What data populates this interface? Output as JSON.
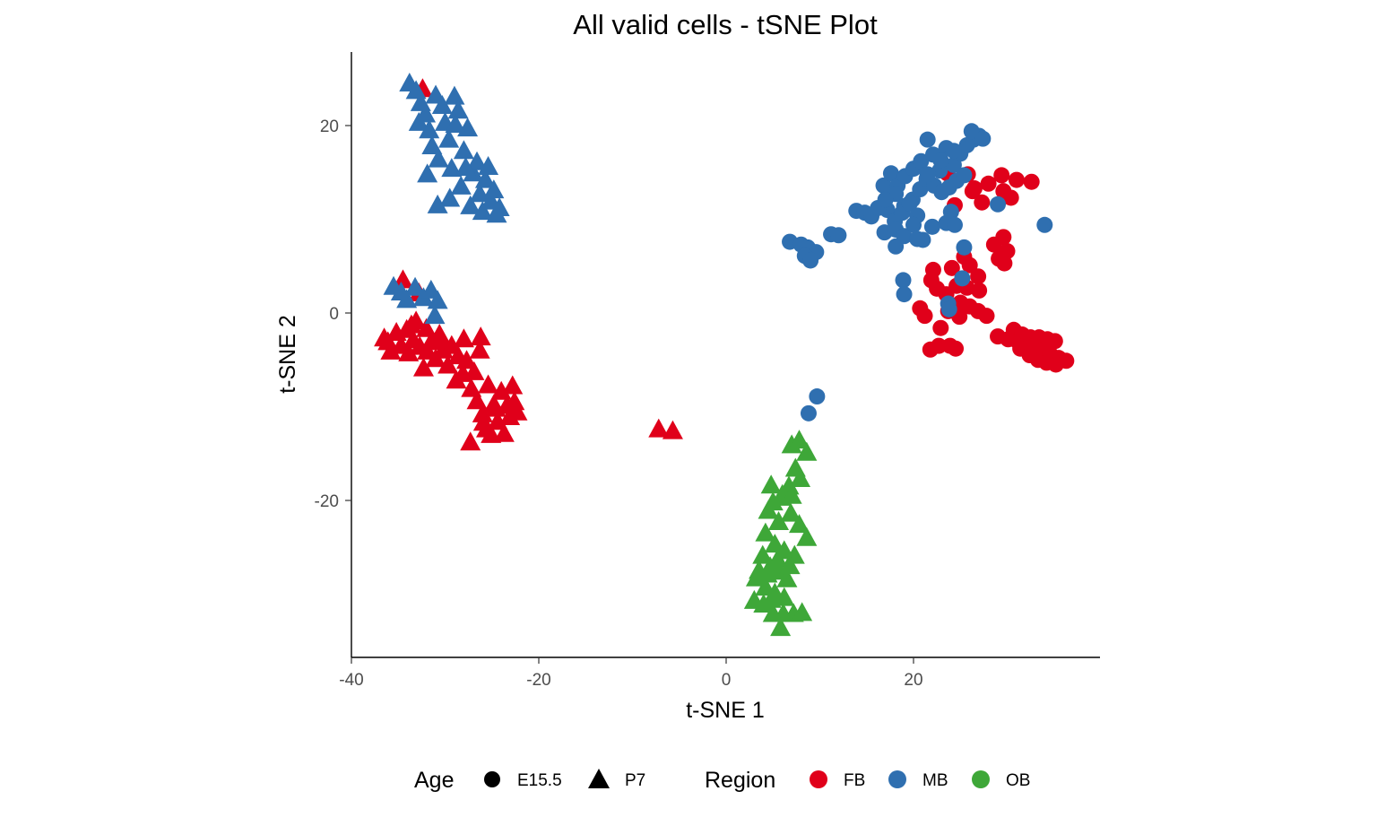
{
  "chart_data": {
    "type": "scatter",
    "title": "All valid cells - tSNE Plot",
    "xlabel": "t-SNE 1",
    "ylabel": "t-SNE 2",
    "xlim": [
      -40,
      40
    ],
    "ylim": [
      -37,
      28
    ],
    "xticks": [
      -40,
      -20,
      0,
      20
    ],
    "yticks": [
      -20,
      0,
      20
    ],
    "grid": false,
    "legend_position": "bottom",
    "colors": {
      "FB": "#e0001a",
      "MB": "#2f6fb0",
      "OB": "#3ea738"
    },
    "legends": [
      {
        "title": "Age",
        "items": [
          {
            "label": "E15.5",
            "shape": "circle"
          },
          {
            "label": "P7",
            "shape": "triangle"
          }
        ]
      },
      {
        "title": "Region",
        "items": [
          {
            "label": "FB",
            "color": "#e0001a"
          },
          {
            "label": "MB",
            "color": "#2f6fb0"
          },
          {
            "label": "OB",
            "color": "#3ea738"
          }
        ]
      }
    ],
    "series": [
      {
        "name": "FB",
        "age": "P7",
        "points": [
          [
            -36.5,
            -2.7
          ],
          [
            -35.8,
            -4.1
          ],
          [
            -35.2,
            -2.1
          ],
          [
            -34.7,
            -3.5
          ],
          [
            -34.1,
            -1.8
          ],
          [
            -33.9,
            -4.3
          ],
          [
            -33.4,
            -2.9
          ],
          [
            -33.1,
            -0.9
          ],
          [
            -32.7,
            -3.6
          ],
          [
            -32.3,
            -5.9
          ],
          [
            -32.0,
            -1.7
          ],
          [
            -31.5,
            -3.1
          ],
          [
            -31.0,
            -4.9
          ],
          [
            -30.6,
            -2.3
          ],
          [
            -30.2,
            -4.0
          ],
          [
            -29.7,
            -5.6
          ],
          [
            -29.3,
            -3.5
          ],
          [
            -28.8,
            -7.2
          ],
          [
            -28.6,
            -4.6
          ],
          [
            -28.0,
            -2.8
          ],
          [
            -27.7,
            -5.1
          ],
          [
            -27.2,
            -8.1
          ],
          [
            -26.9,
            -6.3
          ],
          [
            -26.6,
            -9.4
          ],
          [
            -26.3,
            -4.0
          ],
          [
            -26.0,
            -10.8
          ],
          [
            -25.6,
            -12.4
          ],
          [
            -25.4,
            -7.7
          ],
          [
            -25.1,
            -13.0
          ],
          [
            -24.8,
            -9.8
          ],
          [
            -24.4,
            -11.6
          ],
          [
            -24.0,
            -8.4
          ],
          [
            -23.7,
            -12.9
          ],
          [
            -23.4,
            -9.9
          ],
          [
            -23.1,
            -11.1
          ],
          [
            -22.8,
            -7.8
          ],
          [
            -22.6,
            -9.5
          ],
          [
            -22.3,
            -10.6
          ],
          [
            -26.2,
            -2.6
          ],
          [
            -34.5,
            3.5
          ],
          [
            -32.8,
            2.1
          ],
          [
            -27.3,
            -13.8
          ],
          [
            -25.9,
            -11.7
          ],
          [
            -24.6,
            -10.2
          ],
          [
            -33.6,
            -1.3
          ],
          [
            -31.9,
            -4.1
          ],
          [
            -30.3,
            -2.9
          ],
          [
            -36.1,
            -3.1
          ],
          [
            -28.1,
            -6.5
          ],
          [
            -7.2,
            -12.4
          ],
          [
            -5.7,
            -12.6
          ],
          [
            -32.4,
            23.9
          ]
        ]
      },
      {
        "name": "MB",
        "age": "P7",
        "points": [
          [
            -33.8,
            24.5
          ],
          [
            -33.1,
            23.7
          ],
          [
            -32.6,
            22.4
          ],
          [
            -32.1,
            21.2
          ],
          [
            -31.7,
            19.5
          ],
          [
            -31.4,
            17.8
          ],
          [
            -31.0,
            23.2
          ],
          [
            -30.7,
            16.4
          ],
          [
            -30.3,
            22.1
          ],
          [
            -30.0,
            20.3
          ],
          [
            -29.6,
            18.5
          ],
          [
            -29.3,
            15.4
          ],
          [
            -29.0,
            23.1
          ],
          [
            -28.6,
            21.6
          ],
          [
            -28.3,
            13.5
          ],
          [
            -28.0,
            17.3
          ],
          [
            -27.6,
            19.7
          ],
          [
            -27.3,
            11.4
          ],
          [
            -27.0,
            14.9
          ],
          [
            -26.6,
            16.1
          ],
          [
            -26.3,
            12.7
          ],
          [
            -26.0,
            10.8
          ],
          [
            -25.7,
            14.2
          ],
          [
            -25.4,
            15.6
          ],
          [
            -25.1,
            11.9
          ],
          [
            -24.8,
            13.1
          ],
          [
            -24.5,
            10.5
          ],
          [
            -24.2,
            11.2
          ],
          [
            -30.8,
            11.5
          ],
          [
            -29.5,
            12.2
          ],
          [
            -31.9,
            14.8
          ],
          [
            -32.8,
            20.3
          ],
          [
            -28.9,
            20.1
          ],
          [
            -27.8,
            15.5
          ],
          [
            -35.5,
            2.8
          ],
          [
            -34.7,
            2.2
          ],
          [
            -33.2,
            2.7
          ],
          [
            -32.3,
            1.6
          ],
          [
            -31.5,
            2.4
          ],
          [
            -30.8,
            1.3
          ],
          [
            -31.1,
            -0.3
          ],
          [
            -34.1,
            1.4
          ]
        ]
      },
      {
        "name": "OB",
        "age": "P7",
        "points": [
          [
            7.0,
            -14.1
          ],
          [
            7.8,
            -13.6
          ],
          [
            8.6,
            -14.9
          ],
          [
            7.4,
            -16.6
          ],
          [
            6.7,
            -18.5
          ],
          [
            7.9,
            -17.7
          ],
          [
            5.9,
            -19.7
          ],
          [
            4.8,
            -18.4
          ],
          [
            4.5,
            -21.1
          ],
          [
            5.6,
            -22.3
          ],
          [
            6.9,
            -21.4
          ],
          [
            7.8,
            -22.6
          ],
          [
            8.6,
            -24.0
          ],
          [
            4.2,
            -23.5
          ],
          [
            5.2,
            -24.7
          ],
          [
            6.2,
            -25.4
          ],
          [
            7.3,
            -25.9
          ],
          [
            3.9,
            -25.9
          ],
          [
            4.7,
            -27.1
          ],
          [
            5.7,
            -27.6
          ],
          [
            6.5,
            -28.4
          ],
          [
            3.2,
            -28.3
          ],
          [
            4.2,
            -29.3
          ],
          [
            5.2,
            -29.9
          ],
          [
            6.2,
            -30.4
          ],
          [
            3.0,
            -30.7
          ],
          [
            4.0,
            -31.1
          ],
          [
            5.0,
            -32.1
          ],
          [
            6.1,
            -32.1
          ],
          [
            7.2,
            -32.1
          ],
          [
            8.1,
            -32.0
          ],
          [
            5.8,
            -33.6
          ],
          [
            6.0,
            -19.4
          ],
          [
            5.0,
            -20.2
          ],
          [
            7.0,
            -19.5
          ],
          [
            5.5,
            -26.3
          ],
          [
            4.4,
            -27.9
          ],
          [
            6.8,
            -27.0
          ],
          [
            3.5,
            -27.5
          ],
          [
            4.8,
            -30.6
          ]
        ]
      },
      {
        "name": "FB",
        "age": "E15.5",
        "points": [
          [
            29.4,
            14.7
          ],
          [
            31.0,
            14.2
          ],
          [
            32.6,
            14.0
          ],
          [
            30.4,
            12.3
          ],
          [
            29.6,
            13.0
          ],
          [
            28.0,
            13.8
          ],
          [
            26.5,
            13.3
          ],
          [
            25.8,
            14.8
          ],
          [
            24.4,
            11.5
          ],
          [
            29.6,
            8.1
          ],
          [
            28.6,
            7.3
          ],
          [
            30.0,
            6.6
          ],
          [
            29.7,
            5.3
          ],
          [
            29.1,
            5.8
          ],
          [
            25.4,
            6.0
          ],
          [
            26.0,
            5.1
          ],
          [
            26.9,
            3.9
          ],
          [
            27.0,
            2.4
          ],
          [
            25.7,
            2.7
          ],
          [
            24.6,
            2.9
          ],
          [
            23.5,
            2.0
          ],
          [
            22.5,
            2.6
          ],
          [
            22.1,
            4.6
          ],
          [
            21.9,
            3.5
          ],
          [
            24.1,
            4.8
          ],
          [
            25.0,
            1.1
          ],
          [
            26.0,
            0.7
          ],
          [
            26.9,
            0.2
          ],
          [
            27.8,
            -0.3
          ],
          [
            23.7,
            0.2
          ],
          [
            24.9,
            -0.4
          ],
          [
            20.7,
            0.5
          ],
          [
            21.2,
            -0.3
          ],
          [
            30.7,
            -1.8
          ],
          [
            31.6,
            -2.3
          ],
          [
            32.5,
            -2.6
          ],
          [
            33.4,
            -2.6
          ],
          [
            34.3,
            -2.8
          ],
          [
            35.1,
            -3.0
          ],
          [
            29.0,
            -2.5
          ],
          [
            30.1,
            -2.8
          ],
          [
            31.1,
            -3.0
          ],
          [
            32.0,
            -3.4
          ],
          [
            32.9,
            -3.6
          ],
          [
            33.7,
            -4.0
          ],
          [
            34.6,
            -4.4
          ],
          [
            35.5,
            -4.8
          ],
          [
            36.3,
            -5.1
          ],
          [
            31.4,
            -3.8
          ],
          [
            32.4,
            -4.5
          ],
          [
            33.3,
            -5.0
          ],
          [
            34.2,
            -5.3
          ],
          [
            35.2,
            -5.5
          ],
          [
            21.8,
            -3.9
          ],
          [
            22.7,
            -3.5
          ],
          [
            23.9,
            -3.5
          ],
          [
            22.9,
            -1.6
          ],
          [
            24.5,
            -3.8
          ],
          [
            26.3,
            13.0
          ],
          [
            27.3,
            11.8
          ],
          [
            23.6,
            14.9
          ]
        ]
      },
      {
        "name": "MB",
        "age": "E15.5",
        "points": [
          [
            16.8,
            13.6
          ],
          [
            17.6,
            14.9
          ],
          [
            18.3,
            13.6
          ],
          [
            19.1,
            14.6
          ],
          [
            20.0,
            15.4
          ],
          [
            20.8,
            16.2
          ],
          [
            21.5,
            18.5
          ],
          [
            22.1,
            16.9
          ],
          [
            22.8,
            15.2
          ],
          [
            23.5,
            17.6
          ],
          [
            24.3,
            15.8
          ],
          [
            25.0,
            17.0
          ],
          [
            25.7,
            17.9
          ],
          [
            26.4,
            18.5
          ],
          [
            27.0,
            18.9
          ],
          [
            26.2,
            19.4
          ],
          [
            27.4,
            18.6
          ],
          [
            18.1,
            12.7
          ],
          [
            19.0,
            11.4
          ],
          [
            19.9,
            12.1
          ],
          [
            20.7,
            13.2
          ],
          [
            21.4,
            14.3
          ],
          [
            22.2,
            13.6
          ],
          [
            23.0,
            12.9
          ],
          [
            23.8,
            13.4
          ],
          [
            24.6,
            14.1
          ],
          [
            25.4,
            14.7
          ],
          [
            17.2,
            11.0
          ],
          [
            18.0,
            9.8
          ],
          [
            18.8,
            10.7
          ],
          [
            19.6,
            11.7
          ],
          [
            20.4,
            10.4
          ],
          [
            16.9,
            8.6
          ],
          [
            18.1,
            8.9
          ],
          [
            19.0,
            8.2
          ],
          [
            20.0,
            9.4
          ],
          [
            21.0,
            7.8
          ],
          [
            22.0,
            9.2
          ],
          [
            23.5,
            9.6
          ],
          [
            24.0,
            10.8
          ],
          [
            13.9,
            10.9
          ],
          [
            14.8,
            10.7
          ],
          [
            15.5,
            10.3
          ],
          [
            16.2,
            11.2
          ],
          [
            17.0,
            12.1
          ],
          [
            6.8,
            7.6
          ],
          [
            8.0,
            7.3
          ],
          [
            8.7,
            7.0
          ],
          [
            9.6,
            6.5
          ],
          [
            8.4,
            6.1
          ],
          [
            9.0,
            5.6
          ],
          [
            11.2,
            8.4
          ],
          [
            12.0,
            8.3
          ],
          [
            24.4,
            9.4
          ],
          [
            25.4,
            7.0
          ],
          [
            20.4,
            7.9
          ],
          [
            18.1,
            7.1
          ],
          [
            18.9,
            3.5
          ],
          [
            19.0,
            2.0
          ],
          [
            25.2,
            3.7
          ],
          [
            23.7,
            1.0
          ],
          [
            23.8,
            0.4
          ],
          [
            29.0,
            11.6
          ],
          [
            34.0,
            9.4
          ],
          [
            9.7,
            -8.9
          ],
          [
            8.8,
            -10.7
          ],
          [
            21.5,
            14.8
          ],
          [
            22.9,
            16.3
          ],
          [
            24.3,
            17.3
          ]
        ]
      }
    ]
  }
}
